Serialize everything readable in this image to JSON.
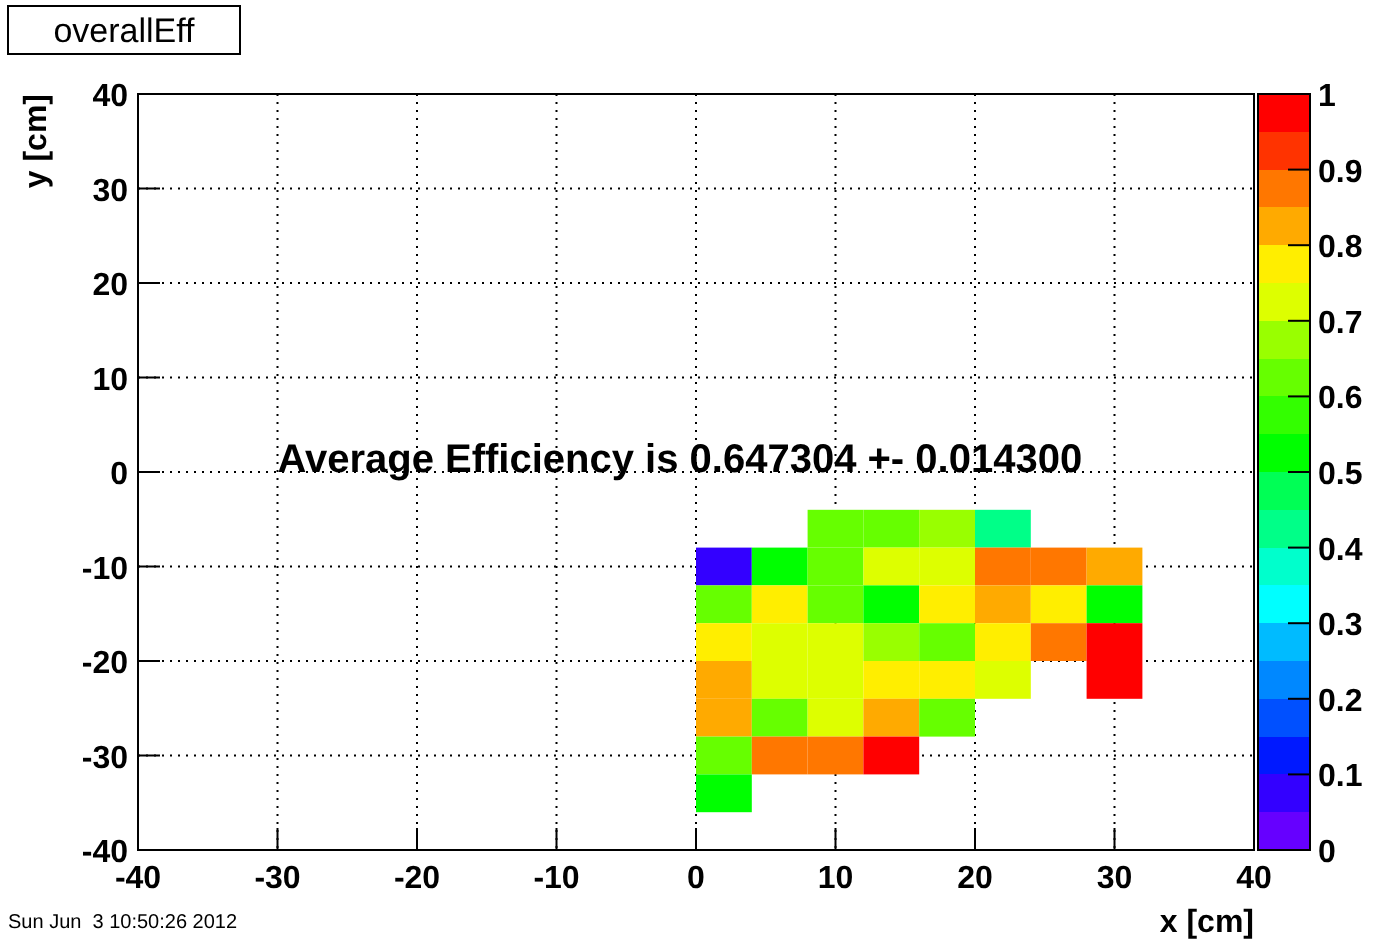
{
  "chart_data": {
    "type": "heatmap",
    "title": "overallEff",
    "xlabel": "x [cm]",
    "ylabel": "y [cm]",
    "x": [
      2,
      6,
      10,
      14,
      18,
      22,
      26,
      30
    ],
    "y": [
      -6,
      -10,
      -14,
      -18,
      -22,
      -26,
      -30,
      -34
    ],
    "cells": [
      [
        null,
        null,
        0.62,
        0.62,
        0.67,
        0.42,
        null,
        null
      ],
      [
        0.07,
        0.52,
        0.62,
        0.72,
        0.72,
        0.87,
        0.87,
        0.82
      ],
      [
        0.62,
        0.77,
        0.62,
        0.52,
        0.77,
        0.82,
        0.77,
        0.52
      ],
      [
        0.77,
        0.72,
        0.72,
        0.67,
        0.62,
        0.77,
        0.87,
        0.97
      ],
      [
        0.82,
        0.72,
        0.72,
        0.77,
        0.77,
        0.72,
        null,
        0.97
      ],
      [
        0.82,
        0.62,
        0.72,
        0.82,
        0.62,
        null,
        null,
        null
      ],
      [
        0.62,
        0.87,
        0.87,
        0.97,
        null,
        null,
        null,
        null
      ],
      [
        0.52,
        null,
        null,
        null,
        null,
        null,
        null,
        null
      ]
    ],
    "xlim": [
      -40,
      40
    ],
    "xticks": [
      -40,
      -30,
      -20,
      -10,
      0,
      10,
      20,
      30,
      40
    ],
    "ylim": [
      -40,
      40
    ],
    "yticks": [
      -40,
      -30,
      -20,
      -10,
      0,
      10,
      20,
      30,
      40
    ],
    "clim": [
      0,
      1
    ],
    "cticks": [
      0,
      0.1,
      0.2,
      0.3,
      0.4,
      0.5,
      0.6,
      0.7,
      0.8,
      0.9,
      1
    ],
    "grid": true,
    "annotations": [
      "Average Efficiency is 0.647304 +- 0.014300",
      "Sun Jun  3 10:50:26 2012"
    ]
  }
}
